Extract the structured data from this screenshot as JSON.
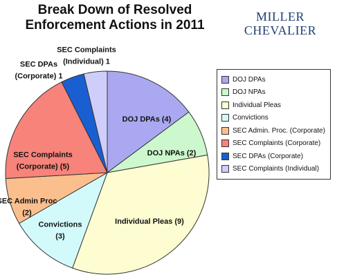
{
  "header": {
    "title_line1": "Break Down of Resolved",
    "title_line2": "Enforcement Actions in 2011"
  },
  "logo": {
    "line1": "MILLER",
    "line2": "CHEVALIER"
  },
  "chart_data": {
    "type": "pie",
    "title": "Break Down of Resolved Enforcement Actions in 2011",
    "legend_position": "right",
    "start": "12 o'clock",
    "direction": "clockwise",
    "slices": [
      {
        "name": "DOJ DPAs",
        "value": 4,
        "color": "#a9a8f0",
        "label_lines": [
          "DOJ DPAs (4)"
        ]
      },
      {
        "name": "DOJ NPAs",
        "value": 2,
        "color": "#cdf7cd",
        "label_lines": [
          "DOJ NPAs (2)"
        ]
      },
      {
        "name": "Individual Pleas",
        "value": 9,
        "color": "#fefdd2",
        "label_lines": [
          "Individual Pleas (9)"
        ]
      },
      {
        "name": "Convictions",
        "value": 3,
        "color": "#d3fafb",
        "label_lines": [
          "Convictions",
          "(3)"
        ]
      },
      {
        "name": "SEC Admin. Proc. (Corporate)",
        "value": 2,
        "color": "#fbbf8e",
        "label_lines": [
          "SEC Admin Proc",
          "(2)"
        ]
      },
      {
        "name": "SEC Complaints (Corporate)",
        "value": 5,
        "color": "#f7837b",
        "label_lines": [
          "SEC Complaints",
          "(Corporate) (5)"
        ]
      },
      {
        "name": "SEC DPAs (Corporate)",
        "value": 1,
        "color": "#1a5fd1",
        "label_lines": [
          "SEC DPAs",
          "(Corporate) 1"
        ]
      },
      {
        "name": "SEC Complaints (Individual)",
        "value": 1,
        "color": "#cfcdf9",
        "label_lines": [
          "SEC Complaints",
          "(Individual) 1"
        ]
      }
    ]
  }
}
